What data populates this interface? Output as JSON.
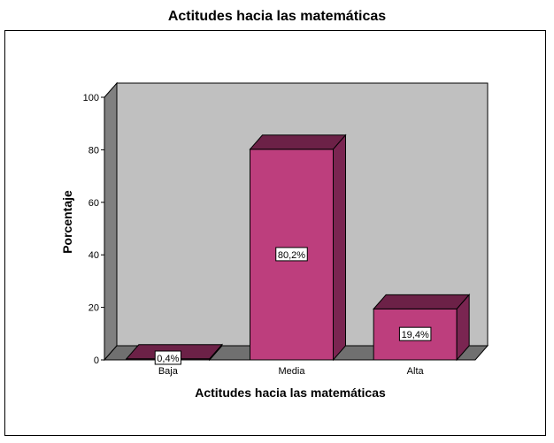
{
  "chart_data": {
    "type": "bar",
    "title": "Actitudes hacia las matemáticas",
    "xlabel": "Actitudes hacia las matemáticas",
    "ylabel": "Porcentaje",
    "categories": [
      "Baja",
      "Media",
      "Alta"
    ],
    "values": [
      0.4,
      80.2,
      19.4
    ],
    "data_labels": [
      "0,4%",
      "80,2%",
      "19,4%"
    ],
    "yticks": [
      0,
      20,
      40,
      60,
      80,
      100
    ],
    "ylim": [
      0,
      100
    ],
    "grid": false,
    "legend": "none",
    "style": "3d",
    "colors": {
      "bar_front": "#bd3e7d",
      "bar_top": "#6c2147",
      "bar_side": "#7a2551",
      "wall": "#c0c0c0",
      "floor_wall": "#707070",
      "left_wall": "#808080"
    }
  }
}
